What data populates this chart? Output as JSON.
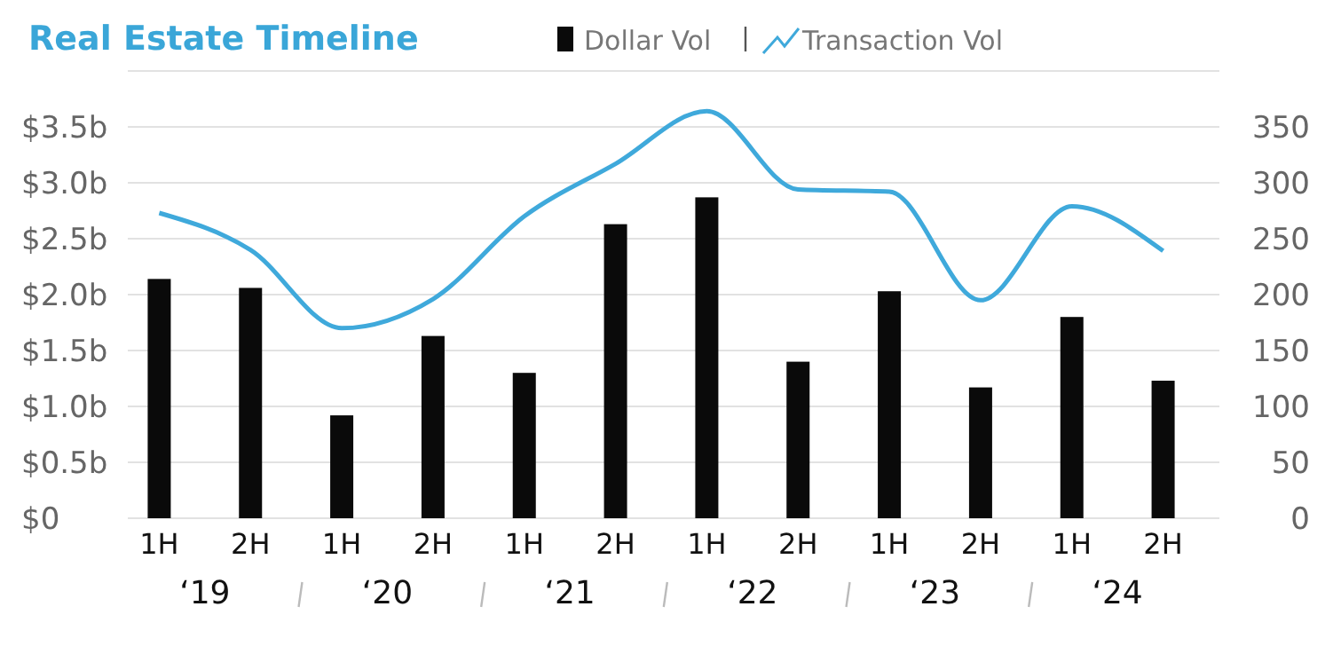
{
  "chart_data": {
    "type": "bar",
    "title": "Real Estate Timeline",
    "categories": [
      "1H",
      "2H",
      "1H",
      "2H",
      "1H",
      "2H",
      "1H",
      "2H",
      "1H",
      "2H",
      "1H",
      "2H"
    ],
    "series": [
      {
        "name": "Dollar Vol",
        "color": "#0a0a0a",
        "values": [
          2.14,
          2.06,
          0.92,
          1.63,
          1.3,
          2.63,
          2.87,
          1.4,
          2.03,
          1.17,
          1.8,
          1.23
        ]
      },
      {
        "name": "Transaction Vol",
        "type": "line",
        "axis": "y2",
        "color": "#3fa9db",
        "values": [
          273,
          240,
          170,
          196,
          270,
          317,
          364,
          294,
          292,
          195,
          279,
          239
        ]
      }
    ],
    "annotations": [
      "‘19",
      "‘20",
      "‘21",
      "‘22",
      "‘23",
      "‘24"
    ],
    "ylim": [
      0,
      4
    ],
    "yticks": [
      {
        "value": 0,
        "label": "$0"
      },
      {
        "value": 0.5,
        "label": "$0.5b"
      },
      {
        "value": 1,
        "label": "$1.0b"
      },
      {
        "value": 1.5,
        "label": "$1.5b"
      },
      {
        "value": 2,
        "label": "$2.0b"
      },
      {
        "value": 2.5,
        "label": "$2.5b"
      },
      {
        "value": 3,
        "label": "$3.0b"
      },
      {
        "value": 3.5,
        "label": "$3.5b"
      },
      {
        "value": 4,
        "label": null
      }
    ],
    "y2lim": [
      0,
      400
    ],
    "y2ticks": [
      0,
      50,
      100,
      150,
      200,
      250,
      300,
      350
    ],
    "grid": "y",
    "legend": "top",
    "marker": "none"
  }
}
